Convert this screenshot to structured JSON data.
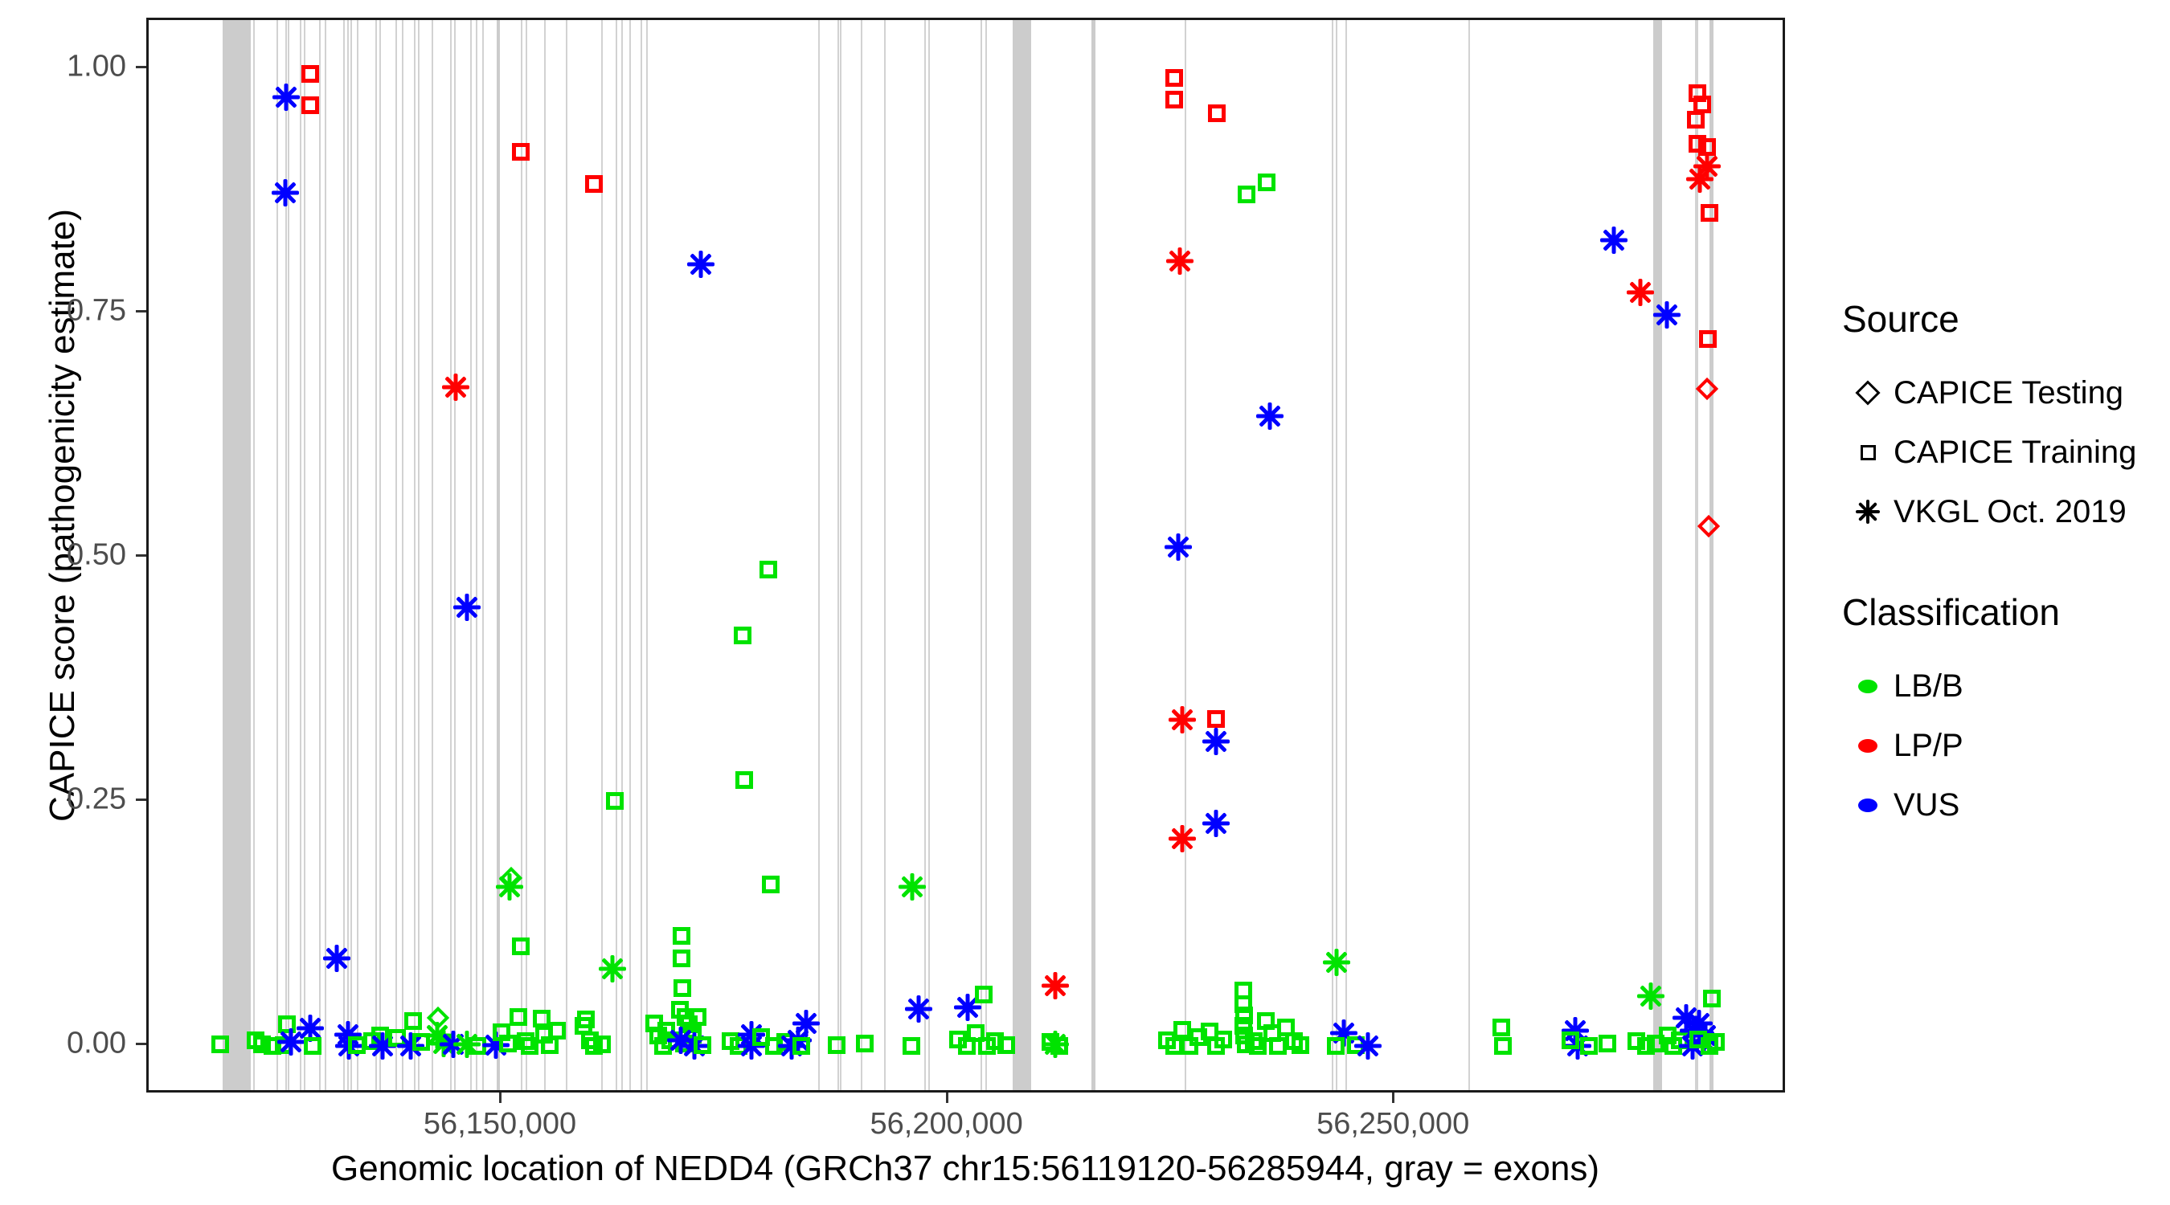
{
  "chart_data": {
    "type": "scatter",
    "title": "",
    "xlabel": "Genomic location of NEDD4 (GRCh37 chr15:56119120-56285944, gray = exons)",
    "ylabel": "CAPICE score (pathogenicity estimate)",
    "x_domain": [
      56110400,
      56293900
    ],
    "y_domain": [
      -0.05,
      1.05
    ],
    "grid": "off",
    "x_ticks": [
      {
        "value": 56150000,
        "label": "56,150,000"
      },
      {
        "value": 56200000,
        "label": "56,200,000"
      },
      {
        "value": 56250000,
        "label": "56,250,000"
      }
    ],
    "y_ticks": [
      {
        "value": 0.0,
        "label": "0.00"
      },
      {
        "value": 0.25,
        "label": "0.25"
      },
      {
        "value": 0.5,
        "label": "0.50"
      },
      {
        "value": 0.75,
        "label": "0.75"
      },
      {
        "value": 1.0,
        "label": "1.00"
      }
    ],
    "colors": {
      "LB": "#00e300",
      "LP": "#ff0000",
      "VUS": "#0000ff"
    },
    "legend": {
      "position": "right",
      "source": {
        "title": "Source",
        "items": [
          {
            "label": "CAPICE Testing",
            "marker": "diamond"
          },
          {
            "label": "CAPICE Training",
            "marker": "square"
          },
          {
            "label": "VKGL Oct. 2019",
            "marker": "asterisk"
          }
        ]
      },
      "classification": {
        "title": "Classification",
        "items": [
          {
            "label": "LB/B",
            "color": "#00e300"
          },
          {
            "label": "LP/P",
            "color": "#ff0000"
          },
          {
            "label": "VUS",
            "color": "#0000ff"
          }
        ]
      }
    },
    "exons_wide": [
      [
        56118700,
        56121800
      ],
      [
        56149400,
        56149700
      ],
      [
        56207100,
        56209200
      ],
      [
        56216000,
        56216400
      ],
      [
        56278900,
        56279900
      ],
      [
        56285200,
        56285600
      ]
    ],
    "exons_thin": [
      56122200,
      56124800,
      56125800,
      56126100,
      56127400,
      56127900,
      56129600,
      56130200,
      56132300,
      56132700,
      56133100,
      56133800,
      56135900,
      56136300,
      56138100,
      56138800,
      56140200,
      56140600,
      56142200,
      56144200,
      56144700,
      56146500,
      56147100,
      56147800,
      56152200,
      56152700,
      56154800,
      56157200,
      56161200,
      56162800,
      56163400,
      56164300,
      56165600,
      56166200,
      56185500,
      56187600,
      56187900,
      56190200,
      56192800,
      56197300,
      56197800,
      56203600,
      56204200,
      56226500,
      56243000,
      56243400,
      56244500,
      56258300,
      56283600,
      56283800
    ],
    "points": [
      [
        56128500,
        0.995,
        "sq",
        "LP"
      ],
      [
        56128500,
        0.963,
        "sq",
        "LP"
      ],
      [
        56125800,
        0.971,
        "as",
        "VUS"
      ],
      [
        56125700,
        0.873,
        "as",
        "VUS"
      ],
      [
        56152100,
        0.915,
        "sq",
        "LP"
      ],
      [
        56160300,
        0.882,
        "sq",
        "LP"
      ],
      [
        56172200,
        0.8,
        "as",
        "VUS"
      ],
      [
        56144800,
        0.674,
        "as",
        "LP"
      ],
      [
        56146000,
        0.449,
        "as",
        "VUS"
      ],
      [
        56131500,
        0.09,
        "as",
        "VUS"
      ],
      [
        56179800,
        0.488,
        "sq",
        "LB"
      ],
      [
        56176900,
        0.42,
        "sq",
        "LB"
      ],
      [
        56177100,
        0.272,
        "sq",
        "LB"
      ],
      [
        56180100,
        0.165,
        "sq",
        "LB"
      ],
      [
        56162600,
        0.251,
        "sq",
        "LB"
      ],
      [
        56152100,
        0.102,
        "sq",
        "LB"
      ],
      [
        56151000,
        0.172,
        "di",
        "LB"
      ],
      [
        56150800,
        0.163,
        "as",
        "LB"
      ],
      [
        56195900,
        0.163,
        "as",
        "LB"
      ],
      [
        56196600,
        0.038,
        "as",
        "VUS"
      ],
      [
        56202100,
        0.04,
        "as",
        "VUS"
      ],
      [
        56211900,
        0.062,
        "as",
        "LP"
      ],
      [
        56225200,
        0.991,
        "sq",
        "LP"
      ],
      [
        56225200,
        0.969,
        "sq",
        "LP"
      ],
      [
        56230000,
        0.955,
        "sq",
        "LP"
      ],
      [
        56233300,
        0.872,
        "sq",
        "LB"
      ],
      [
        56235600,
        0.884,
        "sq",
        "LB"
      ],
      [
        56225900,
        0.803,
        "as",
        "LP"
      ],
      [
        56225700,
        0.511,
        "as",
        "VUS"
      ],
      [
        56226100,
        0.334,
        "as",
        "LP"
      ],
      [
        56229900,
        0.335,
        "sq",
        "LP"
      ],
      [
        56229900,
        0.312,
        "as",
        "VUS"
      ],
      [
        56229900,
        0.228,
        "as",
        "VUS"
      ],
      [
        56226100,
        0.212,
        "as",
        "LP"
      ],
      [
        56235900,
        0.645,
        "as",
        "VUS"
      ],
      [
        56274500,
        0.825,
        "as",
        "VUS"
      ],
      [
        56277400,
        0.771,
        "as",
        "LP"
      ],
      [
        56280400,
        0.748,
        "as",
        "VUS"
      ],
      [
        56283800,
        0.975,
        "sq",
        "LP"
      ],
      [
        56284400,
        0.964,
        "sq",
        "LP"
      ],
      [
        56283600,
        0.948,
        "sq",
        "LP"
      ],
      [
        56283800,
        0.923,
        "sq",
        "LP"
      ],
      [
        56284900,
        0.92,
        "sq",
        "LP"
      ],
      [
        56284900,
        0.9,
        "as",
        "LP"
      ],
      [
        56284100,
        0.887,
        "as",
        "LP"
      ],
      [
        56285200,
        0.853,
        "sq",
        "LP"
      ],
      [
        56285000,
        0.724,
        "sq",
        "LP"
      ],
      [
        56284900,
        0.673,
        "di",
        "LP"
      ],
      [
        56285100,
        0.532,
        "di",
        "LP"
      ],
      [
        56278600,
        0.051,
        "as",
        "LB"
      ],
      [
        56285400,
        0.049,
        "sq",
        "LB"
      ],
      [
        56118400,
        0.002,
        "sq",
        "LB"
      ],
      [
        56122400,
        0.006,
        "sq",
        "LB"
      ],
      [
        56123100,
        0.002,
        "sq",
        "LB"
      ],
      [
        56124300,
        0.0,
        "sq",
        "LB"
      ],
      [
        56125500,
        0.001,
        "sq",
        "LB"
      ],
      [
        56125900,
        0.022,
        "sq",
        "LB"
      ],
      [
        56126300,
        0.004,
        "as",
        "VUS"
      ],
      [
        56128500,
        0.018,
        "as",
        "VUS"
      ],
      [
        56128800,
        0.0,
        "sq",
        "LB"
      ],
      [
        56132700,
        0.012,
        "as",
        "VUS"
      ],
      [
        56132800,
        0.0,
        "as",
        "VUS"
      ],
      [
        56133700,
        0.001,
        "sq",
        "LB"
      ],
      [
        56135400,
        0.005,
        "sq",
        "LB"
      ],
      [
        56136300,
        0.011,
        "sq",
        "LB"
      ],
      [
        56136600,
        0.0,
        "as",
        "VUS"
      ],
      [
        56138200,
        0.008,
        "sq",
        "LB"
      ],
      [
        56139700,
        0.0,
        "as",
        "VUS"
      ],
      [
        56140000,
        0.026,
        "sq",
        "LB"
      ],
      [
        56140900,
        0.004,
        "sq",
        "LB"
      ],
      [
        56142800,
        0.029,
        "di",
        "LB"
      ],
      [
        56142700,
        0.011,
        "as",
        "LB"
      ],
      [
        56143400,
        0.003,
        "as",
        "LB"
      ],
      [
        56144500,
        0.002,
        "as",
        "VUS"
      ],
      [
        56146000,
        0.002,
        "as",
        "LB"
      ],
      [
        56147200,
        0.0,
        "sq",
        "LB"
      ],
      [
        56149300,
        0.001,
        "as",
        "VUS"
      ],
      [
        56149900,
        0.014,
        "sq",
        "LB"
      ],
      [
        56150600,
        0.003,
        "sq",
        "LB"
      ],
      [
        56151800,
        0.03,
        "sq",
        "LB"
      ],
      [
        56152600,
        0.005,
        "sq",
        "LB"
      ],
      [
        56153100,
        0.0,
        "sq",
        "LB"
      ],
      [
        56154400,
        0.028,
        "sq",
        "LB"
      ],
      [
        56154700,
        0.012,
        "sq",
        "LB"
      ],
      [
        56155300,
        0.001,
        "sq",
        "LB"
      ],
      [
        56156100,
        0.016,
        "sq",
        "LB"
      ],
      [
        56159100,
        0.021,
        "sq",
        "LB"
      ],
      [
        56159400,
        0.027,
        "sq",
        "LB"
      ],
      [
        56159800,
        0.006,
        "sq",
        "LB"
      ],
      [
        56160300,
        0.0,
        "sq",
        "LB"
      ],
      [
        56161200,
        0.002,
        "sq",
        "LB"
      ],
      [
        56162300,
        0.079,
        "as",
        "LB"
      ],
      [
        56167000,
        0.023,
        "sq",
        "LB"
      ],
      [
        56167500,
        0.011,
        "sq",
        "LB"
      ],
      [
        56168000,
        0.0,
        "sq",
        "LB"
      ],
      [
        56168400,
        0.016,
        "sq",
        "LB"
      ],
      [
        56168800,
        0.006,
        "sq",
        "LB"
      ],
      [
        56170100,
        0.113,
        "sq",
        "LB"
      ],
      [
        56170100,
        0.09,
        "sq",
        "LB"
      ],
      [
        56170200,
        0.059,
        "sq",
        "LB"
      ],
      [
        56169900,
        0.037,
        "sq",
        "LB"
      ],
      [
        56170500,
        0.03,
        "sq",
        "LB"
      ],
      [
        56170900,
        0.022,
        "sq",
        "LB"
      ],
      [
        56171300,
        0.012,
        "sq",
        "LB"
      ],
      [
        56170300,
        0.003,
        "sq",
        "LB"
      ],
      [
        56171900,
        0.03,
        "sq",
        "LB"
      ],
      [
        56170000,
        0.006,
        "as",
        "VUS"
      ],
      [
        56171500,
        0.0,
        "as",
        "VUS"
      ],
      [
        56172400,
        0.001,
        "sq",
        "LB"
      ],
      [
        56175600,
        0.005,
        "sq",
        "LB"
      ],
      [
        56176500,
        0.0,
        "sq",
        "LB"
      ],
      [
        56177900,
        0.012,
        "as",
        "VUS"
      ],
      [
        56177900,
        0.0,
        "as",
        "VUS"
      ],
      [
        56179000,
        0.009,
        "sq",
        "LB"
      ],
      [
        56180400,
        0.0,
        "sq",
        "LB"
      ],
      [
        56181700,
        0.004,
        "sq",
        "LB"
      ],
      [
        56182400,
        0.0,
        "as",
        "VUS"
      ],
      [
        56183100,
        0.006,
        "as",
        "VUS"
      ],
      [
        56184000,
        0.023,
        "as",
        "VUS"
      ],
      [
        56183500,
        0.0,
        "sq",
        "LB"
      ],
      [
        56187400,
        0.001,
        "sq",
        "LB"
      ],
      [
        56190600,
        0.003,
        "sq",
        "LB"
      ],
      [
        56195800,
        0.0,
        "sq",
        "LB"
      ],
      [
        56203900,
        0.053,
        "sq",
        "LB"
      ],
      [
        56201000,
        0.007,
        "sq",
        "LB"
      ],
      [
        56202000,
        0.0,
        "sq",
        "LB"
      ],
      [
        56203000,
        0.013,
        "sq",
        "LB"
      ],
      [
        56204300,
        0.0,
        "sq",
        "LB"
      ],
      [
        56205200,
        0.005,
        "sq",
        "LB"
      ],
      [
        56206400,
        0.001,
        "sq",
        "LB"
      ],
      [
        56211900,
        0.002,
        "as",
        "LB"
      ],
      [
        56211400,
        0.004,
        "sq",
        "LB"
      ],
      [
        56212400,
        0.0,
        "sq",
        "LB"
      ],
      [
        56224400,
        0.006,
        "sq",
        "LB"
      ],
      [
        56225200,
        0.0,
        "sq",
        "LB"
      ],
      [
        56226100,
        0.017,
        "sq",
        "LB"
      ],
      [
        56226900,
        0.0,
        "sq",
        "LB"
      ],
      [
        56227900,
        0.009,
        "sq",
        "LB"
      ],
      [
        56229200,
        0.015,
        "sq",
        "LB"
      ],
      [
        56229900,
        0.0,
        "sq",
        "LB"
      ],
      [
        56230700,
        0.007,
        "sq",
        "LB"
      ],
      [
        56233000,
        0.057,
        "sq",
        "LB"
      ],
      [
        56233000,
        0.043,
        "sq",
        "LB"
      ],
      [
        56233100,
        0.031,
        "sq",
        "LB"
      ],
      [
        56233000,
        0.021,
        "sq",
        "LB"
      ],
      [
        56233100,
        0.011,
        "sq",
        "LB"
      ],
      [
        56233200,
        0.002,
        "sq",
        "LB"
      ],
      [
        56234100,
        0.005,
        "sq",
        "LB"
      ],
      [
        56234600,
        0.0,
        "sq",
        "LB"
      ],
      [
        56235500,
        0.026,
        "sq",
        "LB"
      ],
      [
        56236200,
        0.013,
        "sq",
        "LB"
      ],
      [
        56236800,
        0.0,
        "sq",
        "LB"
      ],
      [
        56237700,
        0.019,
        "sq",
        "LB"
      ],
      [
        56238600,
        0.005,
        "sq",
        "LB"
      ],
      [
        56239400,
        0.001,
        "sq",
        "LB"
      ],
      [
        56243400,
        0.086,
        "as",
        "LB"
      ],
      [
        56244200,
        0.013,
        "as",
        "VUS"
      ],
      [
        56243300,
        0.0,
        "sq",
        "LB"
      ],
      [
        56245600,
        0.001,
        "sq",
        "LB"
      ],
      [
        56246900,
        0.0,
        "as",
        "VUS"
      ],
      [
        56261900,
        0.019,
        "sq",
        "LB"
      ],
      [
        56262000,
        0.0,
        "sq",
        "LB"
      ],
      [
        56270100,
        0.016,
        "as",
        "VUS"
      ],
      [
        56270400,
        0.0,
        "as",
        "VUS"
      ],
      [
        56269600,
        0.006,
        "sq",
        "LB"
      ],
      [
        56271700,
        0.0,
        "sq",
        "LB"
      ],
      [
        56273700,
        0.003,
        "sq",
        "LB"
      ],
      [
        56277000,
        0.005,
        "sq",
        "LB"
      ],
      [
        56278100,
        0.0,
        "sq",
        "LB"
      ],
      [
        56279100,
        0.003,
        "sq",
        "LB"
      ],
      [
        56280500,
        0.011,
        "sq",
        "LB"
      ],
      [
        56281100,
        0.0,
        "sq",
        "LB"
      ],
      [
        56281800,
        0.006,
        "sq",
        "LB"
      ],
      [
        56282600,
        0.029,
        "as",
        "VUS"
      ],
      [
        56283400,
        0.016,
        "as",
        "VUS"
      ],
      [
        56284000,
        0.023,
        "as",
        "VUS"
      ],
      [
        56284500,
        0.005,
        "as",
        "VUS"
      ],
      [
        56283300,
        0.0,
        "as",
        "VUS"
      ],
      [
        56284700,
        0.011,
        "as",
        "VUS"
      ],
      [
        56283900,
        0.007,
        "sq",
        "LB"
      ],
      [
        56285200,
        0.0,
        "sq",
        "LB"
      ],
      [
        56285900,
        0.004,
        "sq",
        "LB"
      ]
    ]
  }
}
